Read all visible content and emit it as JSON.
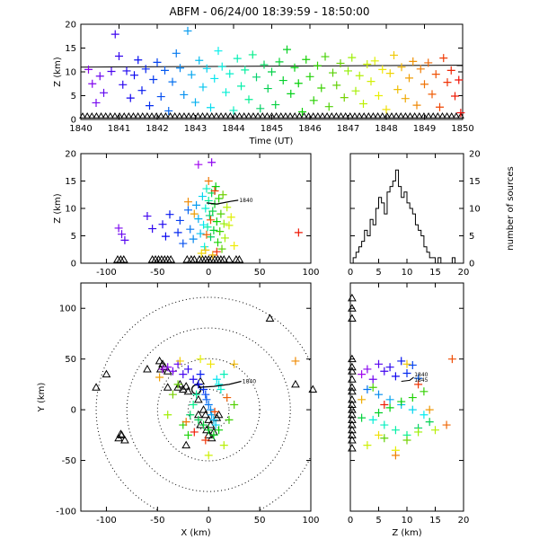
{
  "chart_data": [
    {
      "type": "scatter",
      "panel": "time",
      "title": "ABFM - 06/24/00 18:39:59 - 18:50:00",
      "xlabel": "Time (UT)",
      "ylabel": "Z (km)",
      "xlim": [
        1840,
        1850
      ],
      "ylim": [
        0,
        20
      ],
      "xticks": [
        "1840",
        "1841",
        "1842",
        "1843",
        "1844",
        "1845",
        "1846",
        "1847",
        "1848",
        "1849",
        "1850"
      ],
      "yticks": [
        "0",
        "5",
        "10",
        "15",
        "20"
      ],
      "reference_line_z": [
        11.0,
        11.4
      ],
      "color_scale": "time",
      "points": [
        [
          1840.2,
          10.5
        ],
        [
          1840.3,
          7.5
        ],
        [
          1840.4,
          3.5
        ],
        [
          1840.5,
          9.1
        ],
        [
          1840.6,
          5.6
        ],
        [
          1840.8,
          10.1
        ],
        [
          1840.9,
          17.9
        ],
        [
          1841.0,
          13.3
        ],
        [
          1841.1,
          7.3
        ],
        [
          1841.2,
          10.2
        ],
        [
          1841.3,
          4.5
        ],
        [
          1841.4,
          9.3
        ],
        [
          1841.5,
          12.5
        ],
        [
          1841.6,
          6.1
        ],
        [
          1841.7,
          10.6
        ],
        [
          1841.8,
          2.9
        ],
        [
          1841.9,
          8.4
        ],
        [
          1842.0,
          12.0
        ],
        [
          1842.1,
          4.8
        ],
        [
          1842.2,
          10.3
        ],
        [
          1842.3,
          1.8
        ],
        [
          1842.4,
          7.9
        ],
        [
          1842.5,
          13.9
        ],
        [
          1842.6,
          10.8
        ],
        [
          1842.7,
          5.2
        ],
        [
          1842.8,
          18.6
        ],
        [
          1842.9,
          9.4
        ],
        [
          1843.0,
          3.6
        ],
        [
          1843.1,
          12.4
        ],
        [
          1843.2,
          6.8
        ],
        [
          1843.3,
          10.7
        ],
        [
          1843.4,
          2.5
        ],
        [
          1843.5,
          8.6
        ],
        [
          1843.6,
          14.4
        ],
        [
          1843.7,
          11.1
        ],
        [
          1843.8,
          5.7
        ],
        [
          1843.9,
          9.6
        ],
        [
          1844.0,
          1.9
        ],
        [
          1844.1,
          12.8
        ],
        [
          1844.2,
          7.0
        ],
        [
          1844.3,
          10.4
        ],
        [
          1844.4,
          4.2
        ],
        [
          1844.5,
          13.6
        ],
        [
          1844.6,
          8.9
        ],
        [
          1844.7,
          2.3
        ],
        [
          1844.8,
          11.5
        ],
        [
          1844.9,
          6.5
        ],
        [
          1845.0,
          10.0
        ],
        [
          1845.1,
          3.1
        ],
        [
          1845.2,
          12.1
        ],
        [
          1845.3,
          8.2
        ],
        [
          1845.4,
          14.7
        ],
        [
          1845.5,
          5.4
        ],
        [
          1845.6,
          10.9
        ],
        [
          1845.7,
          7.6
        ],
        [
          1845.8,
          1.6
        ],
        [
          1845.9,
          12.6
        ],
        [
          1846.0,
          9.0
        ],
        [
          1846.1,
          4.0
        ],
        [
          1846.2,
          11.3
        ],
        [
          1846.3,
          6.6
        ],
        [
          1846.4,
          13.2
        ],
        [
          1846.5,
          2.7
        ],
        [
          1846.6,
          9.8
        ],
        [
          1846.7,
          7.2
        ],
        [
          1846.8,
          11.8
        ],
        [
          1846.9,
          4.6
        ],
        [
          1847.0,
          10.2
        ],
        [
          1847.1,
          13.0
        ],
        [
          1847.2,
          6.0
        ],
        [
          1847.3,
          9.2
        ],
        [
          1847.4,
          3.3
        ],
        [
          1847.5,
          11.6
        ],
        [
          1847.6,
          8.0
        ],
        [
          1847.7,
          12.3
        ],
        [
          1847.8,
          5.0
        ],
        [
          1847.9,
          10.5
        ],
        [
          1848.0,
          2.1
        ],
        [
          1848.1,
          9.7
        ],
        [
          1848.2,
          13.5
        ],
        [
          1848.3,
          6.3
        ],
        [
          1848.4,
          11.0
        ],
        [
          1848.5,
          4.4
        ],
        [
          1848.6,
          8.7
        ],
        [
          1848.7,
          12.2
        ],
        [
          1848.8,
          3.0
        ],
        [
          1848.9,
          10.6
        ],
        [
          1849.0,
          7.4
        ],
        [
          1849.1,
          11.9
        ],
        [
          1849.2,
          5.3
        ],
        [
          1849.3,
          9.5
        ],
        [
          1849.4,
          2.6
        ],
        [
          1849.5,
          12.9
        ],
        [
          1849.6,
          7.8
        ],
        [
          1849.7,
          10.3
        ],
        [
          1849.8,
          4.9
        ],
        [
          1849.9,
          8.3
        ],
        [
          1849.95,
          1.4
        ]
      ]
    },
    {
      "type": "scatter",
      "panel": "xz",
      "xlabel": "",
      "ylabel": "Z (km)",
      "xlim": [
        -125,
        100
      ],
      "ylim": [
        0,
        20
      ],
      "xticks": [
        "-100",
        "-50",
        "0",
        "50",
        "100"
      ],
      "yticks": [
        "0",
        "5",
        "10",
        "15",
        "20"
      ],
      "track_label": "1840",
      "color_scale": "time",
      "points": [
        [
          -10,
          18.0
        ],
        [
          3,
          18.4
        ],
        [
          -88,
          6.4
        ],
        [
          -85,
          5.3
        ],
        [
          -82,
          4.2
        ],
        [
          -60,
          8.6
        ],
        [
          -55,
          6.3
        ],
        [
          -45,
          7.1
        ],
        [
          -42,
          4.9
        ],
        [
          -38,
          8.9
        ],
        [
          -30,
          5.6
        ],
        [
          -28,
          7.8
        ],
        [
          -25,
          3.6
        ],
        [
          -20,
          9.7
        ],
        [
          -18,
          6.2
        ],
        [
          -15,
          4.4
        ],
        [
          -12,
          10.6
        ],
        [
          -10,
          8.1
        ],
        [
          -8,
          5.4
        ],
        [
          -6,
          12.2
        ],
        [
          -5,
          7.0
        ],
        [
          -4,
          3.0
        ],
        [
          -3,
          10.0
        ],
        [
          -2,
          13.6
        ],
        [
          -1,
          6.6
        ],
        [
          0,
          11.4
        ],
        [
          1,
          8.7
        ],
        [
          2,
          4.8
        ],
        [
          3,
          12.8
        ],
        [
          4,
          9.5
        ],
        [
          5,
          6.0
        ],
        [
          6,
          10.8
        ],
        [
          7,
          14.0
        ],
        [
          8,
          7.6
        ],
        [
          9,
          3.8
        ],
        [
          10,
          11.8
        ],
        [
          11,
          5.8
        ],
        [
          12,
          9.0
        ],
        [
          13,
          2.6
        ],
        [
          14,
          12.5
        ],
        [
          15,
          7.2
        ],
        [
          16,
          4.6
        ],
        [
          18,
          10.2
        ],
        [
          20,
          6.9
        ],
        [
          22,
          8.4
        ],
        [
          25,
          3.2
        ],
        [
          -7,
          1.8
        ],
        [
          -3,
          2.4
        ],
        [
          4,
          1.5
        ],
        [
          -14,
          9.0
        ],
        [
          -20,
          11.2
        ],
        [
          0,
          15.0
        ],
        [
          -2,
          5.2
        ],
        [
          2,
          7.9
        ],
        [
          6,
          13.2
        ],
        [
          8,
          2.1
        ],
        [
          88,
          5.6
        ]
      ]
    },
    {
      "type": "bar",
      "panel": "histogram",
      "ylabel": "number of sources",
      "xlim": [
        0,
        20
      ],
      "ylim": [
        0,
        20
      ],
      "xticks": [
        "0",
        "5",
        "10",
        "15",
        "20"
      ],
      "yticks": [
        "0",
        "5",
        "10",
        "15",
        "20"
      ],
      "bin_width": 0.5,
      "bin_starts": [
        0.5,
        1.0,
        1.5,
        2.0,
        2.5,
        3.0,
        3.5,
        4.0,
        4.5,
        5.0,
        5.5,
        6.0,
        6.5,
        7.0,
        7.5,
        8.0,
        8.5,
        9.0,
        9.5,
        10.0,
        10.5,
        11.0,
        11.5,
        12.0,
        12.5,
        13.0,
        13.5,
        14.0,
        14.5,
        15.0,
        15.5,
        16.0,
        16.5,
        17.0,
        17.5,
        18.0,
        18.5
      ],
      "values": [
        1,
        2,
        3,
        4,
        6,
        5,
        8,
        7,
        10,
        12,
        11,
        9,
        13,
        14,
        15,
        17,
        14,
        12,
        13,
        11,
        10,
        9,
        7,
        6,
        5,
        3,
        2,
        1,
        1,
        0,
        1,
        0,
        0,
        0,
        0,
        1,
        0
      ]
    },
    {
      "type": "scatter",
      "panel": "xy",
      "xlabel": "X (km)",
      "ylabel": "Y (km)",
      "xlim": [
        -125,
        100
      ],
      "ylim": [
        -100,
        125
      ],
      "xticks": [
        "-100",
        "-50",
        "0",
        "50",
        "100"
      ],
      "yticks": [
        "-100",
        "-50",
        "0",
        "50",
        "100"
      ],
      "range_rings_km": [
        20,
        50,
        80,
        110
      ],
      "track_label": "1840",
      "color_scale": "time",
      "points": [
        [
          -45,
          40
        ],
        [
          -40,
          42
        ],
        [
          -35,
          38
        ],
        [
          -30,
          45
        ],
        [
          -25,
          35
        ],
        [
          -20,
          40
        ],
        [
          -15,
          30
        ],
        [
          -10,
          25
        ],
        [
          -8,
          35
        ],
        [
          -5,
          20
        ],
        [
          -3,
          15
        ],
        [
          -2,
          10
        ],
        [
          0,
          5
        ],
        [
          2,
          0
        ],
        [
          3,
          -5
        ],
        [
          5,
          -10
        ],
        [
          7,
          -15
        ],
        [
          8,
          30
        ],
        [
          10,
          25
        ],
        [
          12,
          20
        ],
        [
          15,
          35
        ],
        [
          -12,
          15
        ],
        [
          -15,
          5
        ],
        [
          -18,
          -5
        ],
        [
          -10,
          -10
        ],
        [
          -5,
          -15
        ],
        [
          0,
          -20
        ],
        [
          5,
          -25
        ],
        [
          10,
          -20
        ],
        [
          -20,
          -25
        ],
        [
          -25,
          -15
        ],
        [
          20,
          -10
        ],
        [
          25,
          5
        ],
        [
          -30,
          25
        ],
        [
          -35,
          15
        ],
        [
          -40,
          -5
        ],
        [
          15,
          -35
        ],
        [
          0,
          -45
        ],
        [
          -8,
          50
        ],
        [
          2,
          45
        ],
        [
          -28,
          48
        ],
        [
          25,
          45
        ],
        [
          -48,
          32
        ],
        [
          85,
          48
        ],
        [
          -22,
          -12
        ],
        [
          18,
          12
        ],
        [
          6,
          -2
        ],
        [
          -3,
          -30
        ],
        [
          -14,
          -22
        ]
      ]
    },
    {
      "type": "scatter",
      "panel": "zy",
      "xlabel": "Z (km)",
      "ylabel": "",
      "xlim": [
        0,
        20
      ],
      "ylim": [
        -100,
        125
      ],
      "xticks": [
        "0",
        "5",
        "10",
        "15",
        "20"
      ],
      "yticks": [],
      "track_labels": [
        "1840",
        "1845"
      ],
      "color_scale": "time",
      "points": [
        [
          2,
          35
        ],
        [
          3,
          40
        ],
        [
          4,
          30
        ],
        [
          5,
          45
        ],
        [
          6,
          38
        ],
        [
          7,
          42
        ],
        [
          8,
          33
        ],
        [
          9,
          48
        ],
        [
          10,
          36
        ],
        [
          11,
          44
        ],
        [
          12,
          31
        ],
        [
          3,
          20
        ],
        [
          5,
          15
        ],
        [
          7,
          10
        ],
        [
          9,
          5
        ],
        [
          11,
          0
        ],
        [
          13,
          -5
        ],
        [
          4,
          -10
        ],
        [
          6,
          -15
        ],
        [
          8,
          -20
        ],
        [
          10,
          -25
        ],
        [
          12,
          -18
        ],
        [
          14,
          -12
        ],
        [
          2,
          -8
        ],
        [
          5,
          -3
        ],
        [
          7,
          2
        ],
        [
          9,
          8
        ],
        [
          11,
          12
        ],
        [
          13,
          18
        ],
        [
          4,
          22
        ],
        [
          6,
          -28
        ],
        [
          10,
          -30
        ],
        [
          12,
          -22
        ],
        [
          15,
          -20
        ],
        [
          3,
          -35
        ],
        [
          8,
          -40
        ],
        [
          5,
          -25
        ],
        [
          10,
          45
        ],
        [
          2,
          10
        ],
        [
          14,
          0
        ],
        [
          8,
          -45
        ],
        [
          17,
          -15
        ],
        [
          18,
          50
        ],
        [
          12,
          25
        ],
        [
          6,
          5
        ]
      ]
    }
  ]
}
